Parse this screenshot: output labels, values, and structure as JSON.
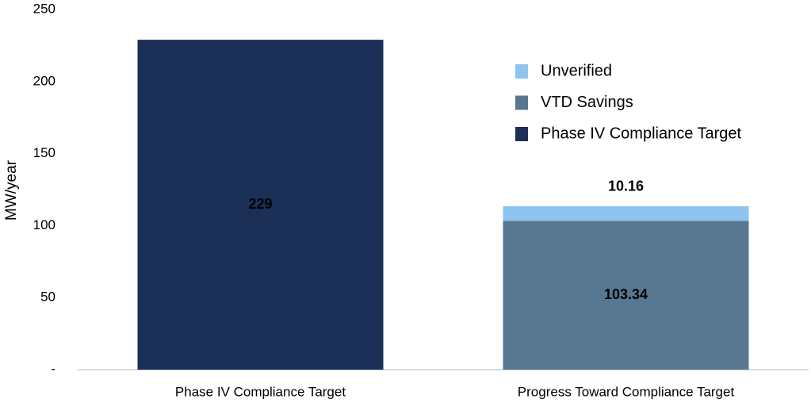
{
  "chart_data": {
    "type": "stacked_bar",
    "y_label": "MW/year",
    "categories": [
      "Phase IV Compliance Target",
      "Progress Toward Compliance Target"
    ],
    "series": [
      {
        "name": "Phase IV Compliance Target",
        "color": "#1b2f57",
        "values": [
          229,
          null
        ]
      },
      {
        "name": "VTD Savings",
        "color": "#587891",
        "values": [
          null,
          103.34
        ]
      },
      {
        "name": "Unverified",
        "color": "#8fc3f0",
        "values": [
          null,
          10.16
        ]
      }
    ],
    "ylim": [
      0,
      250
    ],
    "yticks": [
      {
        "value": 0,
        "label": "-"
      },
      50,
      100,
      150,
      200,
      250
    ],
    "legend": "upper right",
    "grid": false
  }
}
